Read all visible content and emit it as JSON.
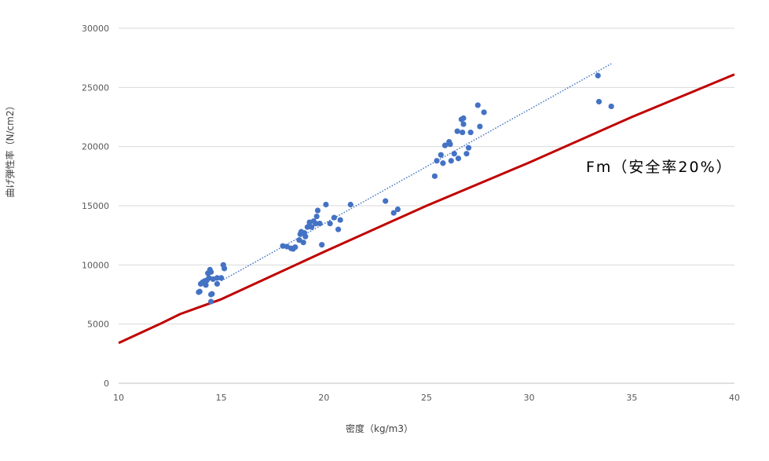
{
  "chart_data": {
    "type": "scatter",
    "xlabel": "密度（kg/m3）",
    "ylabel": "曲げ弾性率（N/cm2）",
    "xlim": [
      10,
      40
    ],
    "ylim": [
      0,
      30000
    ],
    "x_ticks": [
      "10",
      "15",
      "20",
      "25",
      "30",
      "35",
      "40"
    ],
    "y_ticks": [
      "0",
      "5000",
      "10000",
      "15000",
      "20000",
      "25000",
      "30000"
    ],
    "grid": "horizontal",
    "annotation": "Fm（安全率20%）",
    "series": [
      {
        "kind": "scatter",
        "color": "#4472c4",
        "points": [
          [
            13.9,
            7700
          ],
          [
            13.95,
            7750
          ],
          [
            14.0,
            8400
          ],
          [
            14.1,
            8550
          ],
          [
            14.2,
            8650
          ],
          [
            14.25,
            8300
          ],
          [
            14.3,
            8700
          ],
          [
            14.35,
            9300
          ],
          [
            14.4,
            8900
          ],
          [
            14.45,
            9600
          ],
          [
            14.5,
            9400
          ],
          [
            14.5,
            7500
          ],
          [
            14.55,
            7550
          ],
          [
            14.5,
            6900
          ],
          [
            14.6,
            8800
          ],
          [
            14.8,
            8900
          ],
          [
            14.8,
            8400
          ],
          [
            15.0,
            8900
          ],
          [
            15.1,
            10000
          ],
          [
            15.15,
            9700
          ],
          [
            18.0,
            11600
          ],
          [
            18.2,
            11550
          ],
          [
            18.4,
            11400
          ],
          [
            18.5,
            11350
          ],
          [
            18.6,
            11500
          ],
          [
            18.8,
            12100
          ],
          [
            18.85,
            12600
          ],
          [
            18.9,
            12800
          ],
          [
            19.0,
            11900
          ],
          [
            19.05,
            12700
          ],
          [
            19.1,
            12400
          ],
          [
            19.2,
            13200
          ],
          [
            19.3,
            13600
          ],
          [
            19.4,
            13200
          ],
          [
            19.5,
            13700
          ],
          [
            19.6,
            13500
          ],
          [
            19.65,
            14100
          ],
          [
            19.7,
            14600
          ],
          [
            19.8,
            13500
          ],
          [
            19.9,
            11700
          ],
          [
            20.1,
            15100
          ],
          [
            20.3,
            13500
          ],
          [
            20.5,
            14000
          ],
          [
            20.7,
            13000
          ],
          [
            20.8,
            13800
          ],
          [
            21.3,
            15100
          ],
          [
            23.0,
            15400
          ],
          [
            23.4,
            14400
          ],
          [
            23.6,
            14700
          ],
          [
            25.4,
            17500
          ],
          [
            25.5,
            18800
          ],
          [
            25.7,
            19300
          ],
          [
            25.8,
            18600
          ],
          [
            25.9,
            20100
          ],
          [
            26.1,
            20400
          ],
          [
            26.15,
            20200
          ],
          [
            26.2,
            18800
          ],
          [
            26.35,
            19400
          ],
          [
            26.5,
            21300
          ],
          [
            26.55,
            19000
          ],
          [
            26.7,
            22300
          ],
          [
            26.75,
            21200
          ],
          [
            26.8,
            21900
          ],
          [
            26.8,
            22400
          ],
          [
            26.95,
            19400
          ],
          [
            27.05,
            19900
          ],
          [
            27.15,
            21200
          ],
          [
            27.5,
            23500
          ],
          [
            27.6,
            21700
          ],
          [
            27.8,
            22900
          ],
          [
            33.35,
            26000
          ],
          [
            33.4,
            23800
          ],
          [
            34.0,
            23400
          ]
        ]
      },
      {
        "kind": "trendline",
        "style": "dotted",
        "color": "#4472c4",
        "points": [
          [
            15.0,
            8650
          ],
          [
            34.0,
            27000
          ]
        ]
      },
      {
        "kind": "line",
        "color": "#c00000",
        "points": [
          [
            10,
            3400
          ],
          [
            12,
            5000
          ],
          [
            13,
            5850
          ],
          [
            15,
            7100
          ],
          [
            20,
            11100
          ],
          [
            25,
            15000
          ],
          [
            30,
            18650
          ],
          [
            35,
            22500
          ],
          [
            40,
            26100
          ]
        ]
      }
    ]
  }
}
